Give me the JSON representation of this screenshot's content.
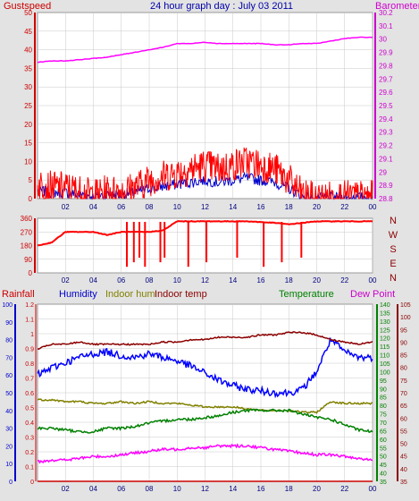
{
  "title": "24 hour graph day : July 03 2011",
  "colors": {
    "background": "#e3e3e3",
    "plot_bg": "#ffffff",
    "grid": "#c8c8c8",
    "gust": "#ff0000",
    "wind": "#0000cc",
    "barometer": "#ff00ff",
    "direction": "#ff0000",
    "humidity": "#0000ff",
    "indoor_hum": "#808000",
    "indoor_temp": "#8b0000",
    "temperature": "#008000",
    "dew_point": "#ff00ff",
    "rainfall": "#cc0000",
    "left_axis_red": "#cc0000",
    "left_axis_blue": "#0000cc",
    "right_axis_magenta": "#cc00cc",
    "right_axis_green": "#008000",
    "right_axis_darkred": "#8b0000"
  },
  "panels": {
    "wind": {
      "left_label": "Gustspeed",
      "right_label": "Barometer",
      "left_ticks": [
        "50",
        "45",
        "40",
        "35",
        "30",
        "25",
        "20",
        "15",
        "10",
        "5",
        "0"
      ],
      "right_ticks": [
        "30.2",
        "30.1",
        "30",
        "29.9",
        "29.8",
        "29.7",
        "29.6",
        "29.5",
        "29.4",
        "29.3",
        "29.2",
        "29.1",
        "29",
        "28.9",
        "28.8"
      ]
    },
    "direction": {
      "left_ticks": [
        "360",
        "270",
        "180",
        "90",
        "0"
      ],
      "compass": [
        "N",
        "W",
        "S",
        "E",
        "N"
      ]
    },
    "temp": {
      "legend": {
        "rainfall": "Rainfall",
        "humidity": "Humidity",
        "indoor_hum": "Indoor hum",
        "indoor_temp": "Indoor temp",
        "temperature": "Temperature",
        "dew_point": "Dew Point"
      },
      "rain_ticks": [
        "1.2",
        "1.1",
        "1",
        "0.9",
        "0.8",
        "0.7",
        "0.6",
        "0.5",
        "0.4",
        "0.3",
        "0.2",
        "0.1",
        "0"
      ],
      "hum_ticks": [
        "100",
        "90",
        "80",
        "70",
        "60",
        "50",
        "40",
        "30",
        "20",
        "10",
        "0"
      ],
      "green_ticks": [
        "140",
        "135",
        "130",
        "125",
        "120",
        "115",
        "110",
        "105",
        "100",
        "95",
        "90",
        "85",
        "80",
        "75",
        "70",
        "65",
        "60",
        "55",
        "50",
        "45",
        "40",
        "35"
      ],
      "darkred_ticks": [
        "105",
        "100",
        "95",
        "90",
        "85",
        "80",
        "75",
        "70",
        "65",
        "60",
        "55",
        "50",
        "45",
        "40",
        "35"
      ]
    }
  },
  "x_ticks": [
    "02",
    "04",
    "06",
    "08",
    "10",
    "12",
    "14",
    "16",
    "18",
    "20",
    "22",
    "00"
  ],
  "chart_data": [
    {
      "type": "line",
      "title": "24 hour graph day : July 03 2011",
      "x": [
        0,
        1,
        2,
        3,
        4,
        5,
        6,
        7,
        8,
        9,
        10,
        11,
        12,
        13,
        14,
        15,
        16,
        17,
        18,
        19,
        20,
        21,
        22,
        23,
        24
      ],
      "series": [
        {
          "name": "Gustspeed",
          "axis": "left",
          "ylim": [
            0,
            50
          ],
          "values": [
            4,
            3,
            3,
            2,
            1,
            2,
            2,
            3,
            5,
            6,
            7,
            8,
            9,
            8,
            9,
            10,
            9,
            8,
            5,
            1,
            0,
            0.5,
            0.5,
            0.5,
            0.5
          ]
        },
        {
          "name": "Barometer",
          "axis": "right",
          "ylim": [
            28.75,
            30.25
          ],
          "values": [
            29.85,
            29.86,
            29.86,
            29.87,
            29.88,
            29.89,
            29.91,
            29.93,
            29.95,
            29.97,
            30.0,
            30.0,
            30.01,
            30.0,
            30.0,
            30.0,
            30.0,
            29.99,
            29.99,
            30.0,
            30.0,
            30.02,
            30.04,
            30.05,
            30.05
          ]
        }
      ]
    },
    {
      "type": "line",
      "title": "",
      "x": [
        0,
        1,
        2,
        3,
        4,
        5,
        6,
        7,
        8,
        9,
        10,
        11,
        12,
        13,
        14,
        15,
        16,
        17,
        18,
        19,
        20,
        21,
        22,
        23,
        24
      ],
      "series": [
        {
          "name": "",
          "ylim": [
            0,
            360
          ],
          "values": [
            180,
            200,
            270,
            270,
            270,
            250,
            270,
            270,
            270,
            280,
            340,
            340,
            340,
            340,
            340,
            340,
            335,
            330,
            320,
            330,
            340,
            340,
            340,
            340,
            340
          ]
        }
      ]
    },
    {
      "type": "line",
      "title": "",
      "x": [
        0,
        1,
        2,
        3,
        4,
        5,
        6,
        7,
        8,
        9,
        10,
        11,
        12,
        13,
        14,
        15,
        16,
        17,
        18,
        19,
        20,
        21,
        22,
        23,
        24
      ],
      "series": [
        {
          "name": "Rainfall",
          "axis": "rain",
          "ylim": [
            0,
            1.2
          ],
          "values": [
            0,
            0,
            0,
            0,
            0,
            0,
            0,
            0,
            0,
            0,
            0,
            0,
            0,
            0,
            0,
            0,
            0,
            0,
            0,
            0,
            0,
            0,
            0,
            0,
            0
          ]
        },
        {
          "name": "Humidity",
          "axis": "hum",
          "ylim": [
            0,
            100
          ],
          "values": [
            60,
            64,
            67,
            70,
            72,
            73,
            71,
            70,
            72,
            70,
            68,
            65,
            61,
            57,
            54,
            52,
            51,
            50,
            50,
            52,
            62,
            80,
            73,
            70,
            70
          ]
        },
        {
          "name": "Indoor hum",
          "axis": "hum",
          "ylim": [
            0,
            100
          ],
          "values": [
            46,
            46,
            45,
            45,
            44,
            44,
            45,
            44,
            45,
            44,
            44,
            43,
            42,
            42,
            42,
            41,
            40,
            40,
            40,
            39,
            39,
            45,
            44,
            44,
            44
          ]
        },
        {
          "name": "Indoor temp",
          "axis": "darkred",
          "ylim": [
            32,
            107
          ],
          "values": [
            88,
            90,
            90,
            91,
            90,
            90,
            90,
            90,
            90,
            91,
            91,
            92,
            92,
            93,
            93,
            93,
            94,
            94,
            95,
            95,
            94,
            92,
            91,
            90,
            91
          ]
        },
        {
          "name": "Temperature",
          "axis": "hum",
          "ylim": [
            0,
            100
          ],
          "values": [
            30,
            30,
            29,
            28,
            28,
            30,
            30,
            31,
            33,
            34,
            35,
            35,
            36,
            37,
            39,
            40,
            40,
            40,
            40,
            38,
            36,
            35,
            32,
            29,
            28
          ]
        },
        {
          "name": "Dew Point",
          "axis": "hum",
          "ylim": [
            0,
            100
          ],
          "values": [
            11,
            12,
            12,
            13,
            14,
            14,
            15,
            16,
            17,
            18,
            18,
            19,
            19,
            20,
            20,
            20,
            19,
            18,
            17,
            16,
            15,
            15,
            14,
            13,
            12
          ]
        }
      ]
    }
  ]
}
